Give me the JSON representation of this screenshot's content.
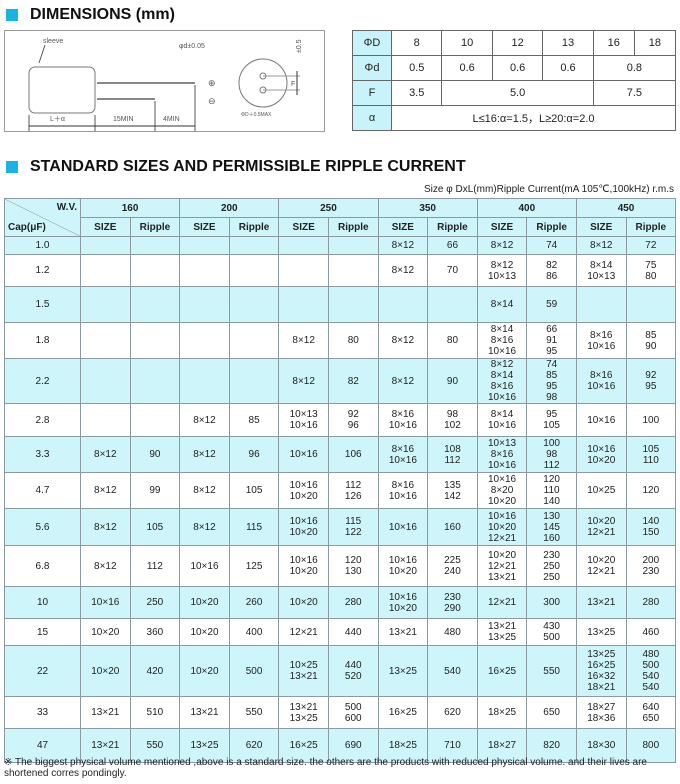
{
  "dimensions": {
    "title": "DIMENSIONS (mm)",
    "diagram_labels": {
      "sleeve": "sleeve",
      "lead": "φd±0.05",
      "length": "L＋α",
      "lead1": "15MIN",
      "lead2": "4MIN",
      "pitch": "F",
      "tol": "±0.5",
      "dia": "ΦD＋0.5MAX",
      "plus": "⊕",
      "minus": "⊖"
    },
    "table": [
      {
        "key": "ΦD",
        "cells": [
          [
            "8",
            1
          ],
          [
            "10",
            1
          ],
          [
            "12",
            1
          ],
          [
            "13",
            1
          ],
          [
            "16",
            1
          ],
          [
            "18",
            1
          ]
        ]
      },
      {
        "key": "Φd",
        "cells": [
          [
            "0.5",
            1
          ],
          [
            "0.6",
            1
          ],
          [
            "0.6",
            1
          ],
          [
            "0.6",
            1
          ],
          [
            "0.8",
            2
          ]
        ]
      },
      {
        "key": "F",
        "cells": [
          [
            "3.5",
            1
          ],
          [
            "5.0",
            3
          ],
          [
            "7.5",
            2
          ]
        ]
      },
      {
        "key": "α",
        "cells": [
          [
            "L≤16:α=1.5，L≥20:α=2.0",
            6
          ]
        ]
      }
    ]
  },
  "ripple": {
    "title": "STANDARD SIZES AND PERMISSIBLE RIPPLE CURRENT",
    "note": "Size φ DxL(mm)Ripple Current(mA 105℃,100kHz) r.m.s",
    "wv_label": "W.V.",
    "cap_label": "Cap(μF)",
    "size_label": "SIZE",
    "ripple_label": "Ripple",
    "voltages": [
      "160",
      "200",
      "250",
      "350",
      "400",
      "450"
    ],
    "rows": [
      {
        "cap": "1.0",
        "h": 18,
        "cells": [
          "",
          "",
          "",
          "",
          "",
          "",
          "8×12",
          "66",
          "8×12",
          "74",
          "8×12",
          "72"
        ]
      },
      {
        "cap": "1.2",
        "h": 32,
        "cells": [
          "",
          "",
          "",
          "",
          "",
          "",
          "8×12",
          "70",
          "8×12\n10×13",
          "82\n86",
          "8×14\n10×13",
          "75\n80"
        ]
      },
      {
        "cap": "1.5",
        "h": 36,
        "cells": [
          "",
          "",
          "",
          "",
          "",
          "",
          "",
          "",
          "8×14",
          "59",
          "",
          ""
        ]
      },
      {
        "cap": "1.8",
        "h": 36,
        "cells": [
          "",
          "",
          "",
          "",
          "8×12",
          "80",
          "8×12",
          "80",
          "8×14\n8×16\n10×16",
          "66\n91\n95",
          "8×16\n10×16",
          "85\n90"
        ]
      },
      {
        "cap": "2.2",
        "h": 37,
        "cells": [
          "",
          "",
          "",
          "",
          "8×12",
          "82",
          "8×12",
          "90",
          "8×12\n8×14\n8×16\n10×16",
          "74\n85\n95\n98",
          "8×16\n10×16",
          "92\n95"
        ]
      },
      {
        "cap": "2.8",
        "h": 33,
        "cells": [
          "",
          "",
          "8×12",
          "85",
          "10×13\n10×16",
          "92\n96",
          "8×16\n10×16",
          "98\n102",
          "8×14\n10×16",
          "95\n105",
          "10×16",
          "100"
        ]
      },
      {
        "cap": "3.3",
        "h": 36,
        "cells": [
          "8×12",
          "90",
          "8×12",
          "96",
          "10×16",
          "106",
          "8×16\n10×16",
          "108\n112",
          "10×13\n8×16\n10×16",
          "100\n98\n112",
          "10×16\n10×20",
          "105\n110"
        ]
      },
      {
        "cap": "4.7",
        "h": 36,
        "cells": [
          "8×12",
          "99",
          "8×12",
          "105",
          "10×16\n10×20",
          "112\n126",
          "8×16\n10×16",
          "135\n142",
          "10×16\n8×20\n10×20",
          "120\n110\n140",
          "10×25",
          "120"
        ]
      },
      {
        "cap": "5.6",
        "h": 37,
        "cells": [
          "8×12",
          "105",
          "8×12",
          "115",
          "10×16\n10×20",
          "115\n122",
          "10×16",
          "160",
          "10×16\n10×20\n12×21",
          "130\n145\n160",
          "10×20\n12×21",
          "140\n150"
        ]
      },
      {
        "cap": "6.8",
        "h": 41,
        "cells": [
          "8×12",
          "112",
          "10×16",
          "125",
          "10×16\n10×20",
          "120\n130",
          "10×16\n10×20",
          "225\n240",
          "10×20\n12×21\n13×21",
          "230\n250\n250",
          "10×20\n12×21",
          "200\n230"
        ]
      },
      {
        "cap": "10",
        "h": 32,
        "cells": [
          "10×16",
          "250",
          "10×20",
          "260",
          "10×20",
          "280",
          "10×16\n10×20",
          "230\n290",
          "12×21",
          "300",
          "13×21",
          "280"
        ]
      },
      {
        "cap": "15",
        "h": 27,
        "cells": [
          "10×20",
          "360",
          "10×20",
          "400",
          "12×21",
          "440",
          "13×21",
          "480",
          "13×21\n13×25",
          "430\n500",
          "13×25",
          "460"
        ]
      },
      {
        "cap": "22",
        "h": 51,
        "cells": [
          "10×20",
          "420",
          "10×20",
          "500",
          "10×25\n13×21",
          "440\n520",
          "13×25",
          "540",
          "16×25",
          "550",
          "13×25\n16×25\n16×32\n18×21",
          "480\n500\n540\n540"
        ]
      },
      {
        "cap": "33",
        "h": 32,
        "cells": [
          "13×21",
          "510",
          "13×21",
          "550",
          "13×21\n13×25",
          "500\n600",
          "16×25",
          "620",
          "18×25",
          "650",
          "18×27\n18×36",
          "640\n650"
        ]
      },
      {
        "cap": "47",
        "h": 34,
        "cells": [
          "13×21",
          "550",
          "13×25",
          "620",
          "16×25",
          "690",
          "18×25",
          "710",
          "18×27",
          "820",
          "18×30",
          "800"
        ]
      }
    ],
    "footnote": "※ The biggest physical volume mentioned ,above is a standard size. the others are the products with reduced physical volume. and their lives are shortened corres pondingly."
  },
  "colors": {
    "accent": "#19b3e6",
    "row_highlight": "#cdf5fa"
  }
}
